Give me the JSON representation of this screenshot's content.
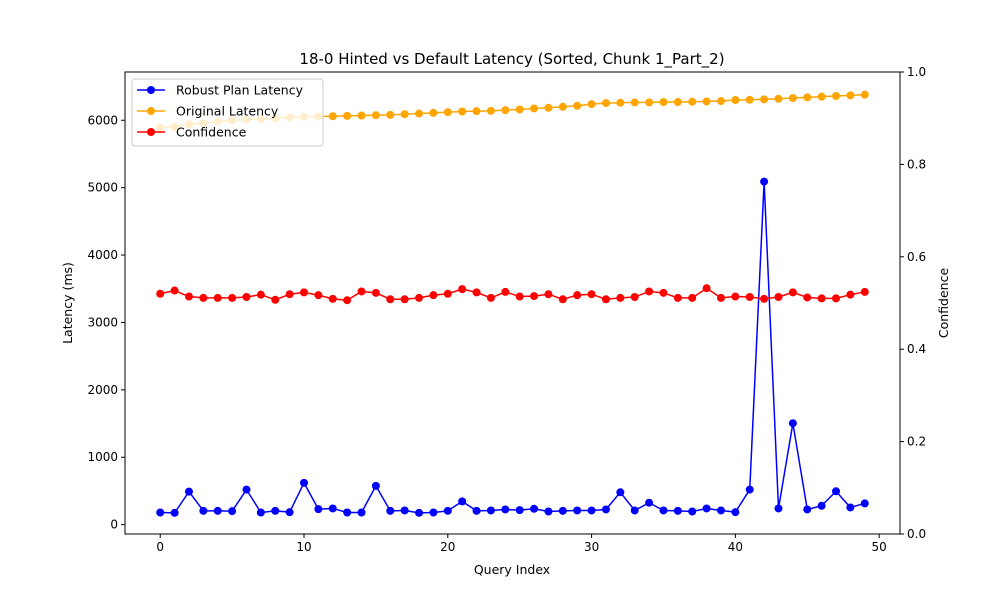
{
  "chart_data": {
    "type": "line",
    "title": "18-0 Hinted vs Default Latency (Sorted, Chunk 1_Part_2)",
    "xlabel": "Query Index",
    "ylabel": "Latency (ms)",
    "y2label": "Confidence",
    "xlim": [
      -2.45,
      51.45
    ],
    "ylim": [
      -139,
      6716
    ],
    "y2lim": [
      0.0,
      1.0
    ],
    "xticks": [
      0,
      10,
      20,
      30,
      40,
      50
    ],
    "yticks": [
      0,
      1000,
      2000,
      3000,
      4000,
      5000,
      6000
    ],
    "y2ticks": [
      0.0,
      0.2,
      0.4,
      0.6,
      0.8,
      1.0
    ],
    "y2tick_labels": [
      "0.0",
      "0.2",
      "0.4",
      "0.6",
      "0.8",
      "1.0"
    ],
    "grid": false,
    "legend_position": "top-left",
    "x": [
      0,
      1,
      2,
      3,
      4,
      5,
      6,
      7,
      8,
      9,
      10,
      11,
      12,
      13,
      14,
      15,
      16,
      17,
      18,
      19,
      20,
      21,
      22,
      23,
      24,
      25,
      26,
      27,
      28,
      29,
      30,
      31,
      32,
      33,
      34,
      35,
      36,
      37,
      38,
      39,
      40,
      41,
      42,
      43,
      44,
      45,
      46,
      47,
      48,
      49
    ],
    "series": [
      {
        "name": "Robust Plan Latency",
        "axis": "left",
        "color": "#0000ff",
        "values": [
          180,
          175,
          490,
          205,
          205,
          200,
          520,
          180,
          205,
          185,
          620,
          230,
          240,
          180,
          180,
          575,
          205,
          210,
          175,
          180,
          205,
          345,
          205,
          210,
          225,
          215,
          235,
          195,
          205,
          210,
          210,
          225,
          480,
          210,
          325,
          210,
          205,
          195,
          240,
          210,
          185,
          520,
          5090,
          240,
          1505,
          225,
          280,
          495,
          255,
          315
        ]
      },
      {
        "name": "Original Latency",
        "axis": "left",
        "color": "#ffa500",
        "values": [
          5890,
          5900,
          5940,
          5960,
          5980,
          6000,
          6010,
          6020,
          6030,
          6040,
          6050,
          6055,
          6060,
          6065,
          6070,
          6075,
          6080,
          6090,
          6100,
          6110,
          6120,
          6130,
          6135,
          6140,
          6150,
          6160,
          6175,
          6185,
          6200,
          6215,
          6240,
          6255,
          6260,
          6265,
          6265,
          6270,
          6270,
          6275,
          6280,
          6285,
          6300,
          6305,
          6310,
          6320,
          6330,
          6340,
          6350,
          6360,
          6370,
          6380
        ]
      },
      {
        "name": "Confidence",
        "axis": "right",
        "color": "#ff0000",
        "values": [
          0.52,
          0.527,
          0.514,
          0.511,
          0.511,
          0.511,
          0.513,
          0.518,
          0.507,
          0.519,
          0.523,
          0.517,
          0.509,
          0.506,
          0.525,
          0.522,
          0.508,
          0.508,
          0.511,
          0.517,
          0.52,
          0.53,
          0.523,
          0.511,
          0.524,
          0.514,
          0.515,
          0.519,
          0.508,
          0.517,
          0.519,
          0.508,
          0.511,
          0.513,
          0.525,
          0.522,
          0.511,
          0.511,
          0.532,
          0.511,
          0.514,
          0.513,
          0.509,
          0.513,
          0.523,
          0.512,
          0.51,
          0.51,
          0.518,
          0.524
        ]
      }
    ]
  }
}
